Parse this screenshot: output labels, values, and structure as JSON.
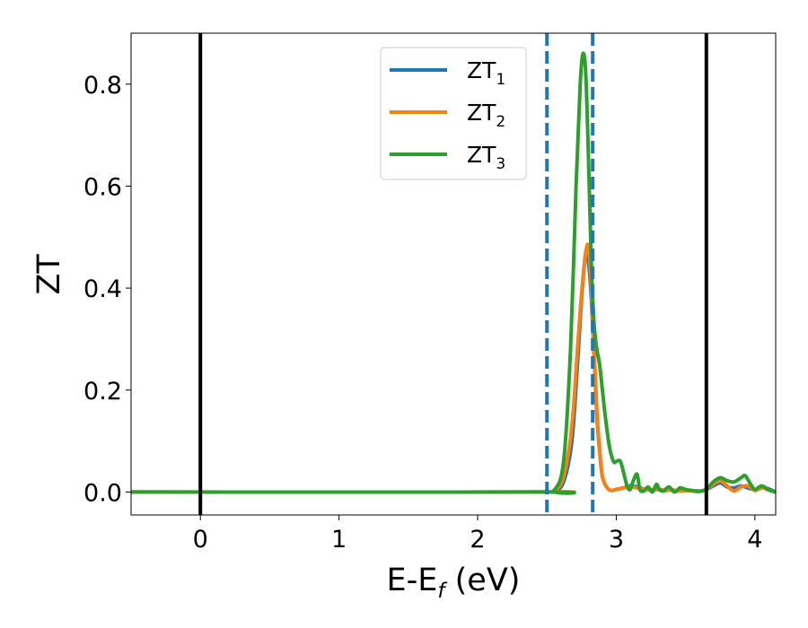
{
  "chart_data": {
    "type": "line",
    "xlabel": "E-E",
    "xlabel_sub": "f",
    "xlabel_unit": " (eV)",
    "ylabel": "ZT",
    "xlim": [
      -0.5,
      4.15
    ],
    "ylim": [
      -0.045,
      0.9
    ],
    "xticks": [
      0,
      1,
      2,
      3,
      4
    ],
    "xtick_labels": [
      "0",
      "1",
      "2",
      "3",
      "4"
    ],
    "yticks": [
      0.0,
      0.2,
      0.4,
      0.6,
      0.8
    ],
    "ytick_labels": [
      "0.0",
      "0.2",
      "0.4",
      "0.6",
      "0.8"
    ],
    "grid": false,
    "legend_position": "top-center",
    "vertical_lines": [
      {
        "x": 0.0,
        "style": "solid",
        "color": "#000000"
      },
      {
        "x": 3.65,
        "style": "solid",
        "color": "#000000"
      },
      {
        "x": 2.5,
        "style": "dashed",
        "color": "#1f77b4"
      },
      {
        "x": 2.83,
        "style": "dashed",
        "color": "#1f77b4"
      }
    ],
    "series": [
      {
        "name": "ZT",
        "name_sub": "1",
        "color": "#1f77b4",
        "x": [
          -0.5,
          2.45,
          2.55,
          2.62,
          2.68,
          2.72,
          2.75,
          2.78,
          2.8,
          2.82,
          2.84,
          2.86,
          2.88,
          2.9,
          2.93,
          2.96,
          3.0,
          3.05,
          3.1,
          3.15,
          3.2,
          3.25,
          3.3,
          3.35,
          3.4,
          3.45,
          3.5,
          3.55,
          3.6,
          3.65,
          3.7,
          3.75,
          3.8,
          3.85,
          3.9,
          3.95,
          4.0,
          4.05,
          4.1,
          4.15
        ],
        "y": [
          0.0,
          0.0,
          0.002,
          0.02,
          0.1,
          0.25,
          0.38,
          0.47,
          0.45,
          0.38,
          0.27,
          0.15,
          0.08,
          0.03,
          0.01,
          0.003,
          0.005,
          0.008,
          0.012,
          0.01,
          0.006,
          0.004,
          0.006,
          0.003,
          0.004,
          0.002,
          0.003,
          0.002,
          0.001,
          0.005,
          0.012,
          0.018,
          0.01,
          0.008,
          0.012,
          0.008,
          0.005,
          0.01,
          0.006,
          0.0
        ]
      },
      {
        "name": "ZT",
        "name_sub": "2",
        "color": "#ff7f0e",
        "x": [
          -0.5,
          2.45,
          2.55,
          2.62,
          2.68,
          2.72,
          2.75,
          2.78,
          2.8,
          2.82,
          2.84,
          2.86,
          2.88,
          2.9,
          2.93,
          2.96,
          3.0,
          3.05,
          3.1,
          3.15,
          3.2,
          3.25,
          3.3,
          3.35,
          3.4,
          3.45,
          3.5,
          3.55,
          3.6,
          3.65,
          3.7,
          3.75,
          3.8,
          3.85,
          3.9,
          3.95,
          4.0,
          4.05,
          4.1,
          4.15
        ],
        "y": [
          0.0,
          0.0,
          0.003,
          0.03,
          0.13,
          0.28,
          0.39,
          0.47,
          0.48,
          0.4,
          0.28,
          0.16,
          0.08,
          0.03,
          0.01,
          0.003,
          0.005,
          0.008,
          0.01,
          0.008,
          0.006,
          0.004,
          0.005,
          0.003,
          0.004,
          0.002,
          0.003,
          0.002,
          0.001,
          0.005,
          0.015,
          0.022,
          0.012,
          0.002,
          0.01,
          0.012,
          0.003,
          0.008,
          0.004,
          0.0
        ]
      },
      {
        "name": "ZT",
        "name_sub": "3",
        "color": "#2ca02c",
        "x": [
          -0.5,
          2.45,
          2.55,
          2.62,
          2.67,
          2.71,
          2.74,
          2.76,
          2.78,
          2.8,
          2.82,
          2.84,
          2.86,
          2.88,
          2.9,
          2.92,
          2.95,
          2.98,
          3.0,
          3.03,
          3.06,
          3.08,
          3.1,
          3.12,
          3.15,
          3.17,
          3.2,
          3.23,
          3.26,
          3.29,
          3.31,
          3.34,
          3.38,
          3.42,
          3.46,
          3.5,
          3.55,
          3.6,
          3.65,
          3.7,
          3.75,
          3.8,
          3.85,
          3.9,
          3.93,
          3.97,
          4.0,
          4.05,
          4.1,
          4.15
        ],
        "y": [
          0.0,
          0.0,
          0.003,
          0.06,
          0.28,
          0.6,
          0.8,
          0.86,
          0.82,
          0.65,
          0.45,
          0.33,
          0.28,
          0.25,
          0.2,
          0.15,
          0.09,
          0.06,
          0.06,
          0.06,
          0.03,
          0.01,
          0.005,
          0.02,
          0.035,
          0.005,
          0.002,
          0.01,
          0.0,
          0.015,
          0.005,
          0.002,
          0.01,
          0.0,
          0.008,
          0.005,
          0.003,
          0.002,
          0.005,
          0.02,
          0.028,
          0.022,
          0.02,
          0.028,
          0.032,
          0.015,
          0.005,
          0.012,
          0.004,
          0.0
        ]
      }
    ]
  }
}
